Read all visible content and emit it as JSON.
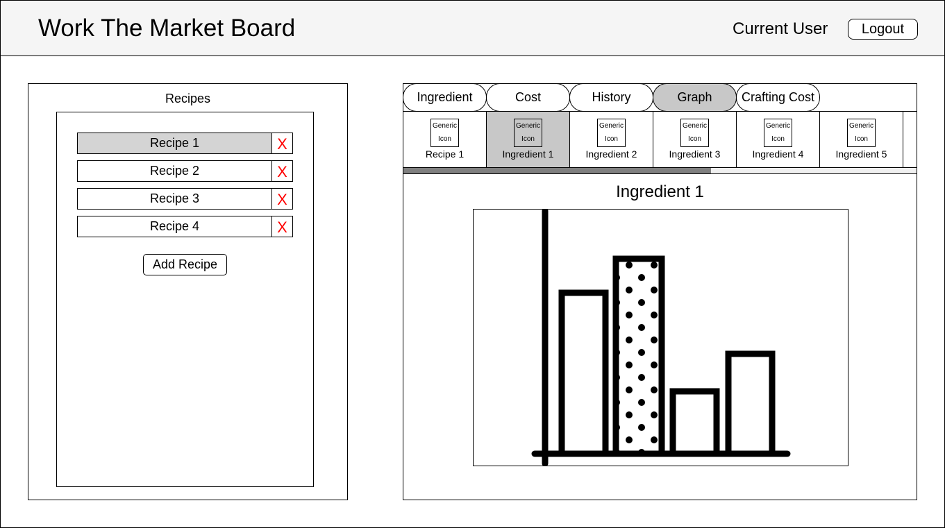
{
  "header": {
    "title": "Work The Market Board",
    "current_user": "Current User",
    "logout_label": "Logout"
  },
  "recipes": {
    "title": "Recipes",
    "items": [
      {
        "label": "Recipe 1",
        "selected": true,
        "delete_label": "X"
      },
      {
        "label": "Recipe 2",
        "selected": false,
        "delete_label": "X"
      },
      {
        "label": "Recipe 3",
        "selected": false,
        "delete_label": "X"
      },
      {
        "label": "Recipe 4",
        "selected": false,
        "delete_label": "X"
      }
    ],
    "add_label": "Add Recipe",
    "delete_color": "#ff0000"
  },
  "tabs": [
    {
      "label": "Ingredient",
      "active": false
    },
    {
      "label": "Cost",
      "active": false
    },
    {
      "label": "History",
      "active": false
    },
    {
      "label": "Graph",
      "active": true
    },
    {
      "label": "Crafting Cost",
      "active": false
    }
  ],
  "ingredient_strip": {
    "icon_text_top": "Generic",
    "icon_text_bottom": "Icon",
    "items": [
      {
        "label": "Recipe 1",
        "selected": false
      },
      {
        "label": "Ingredient 1",
        "selected": true
      },
      {
        "label": "Ingredient 2",
        "selected": false
      },
      {
        "label": "Ingredient 3",
        "selected": false
      },
      {
        "label": "Ingredient 4",
        "selected": false
      },
      {
        "label": "Ingredient 5",
        "selected": false
      }
    ],
    "scroll_fraction": 0.6
  },
  "detail": {
    "title": "Ingredient 1",
    "graph_icon": "bar-chart-icon"
  },
  "colors": {
    "header_bg": "#f5f5f5",
    "selected_bg": "#c8c8c8",
    "scroll_thumb": "#808080"
  }
}
